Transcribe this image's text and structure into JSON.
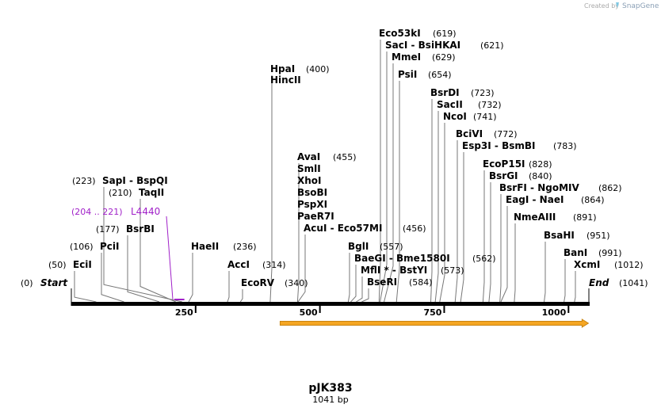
{
  "credit": {
    "prefix": "Created by",
    "brand": "SnapGene"
  },
  "title": "pJK383",
  "subtitle": "1041 bp",
  "colors": {
    "primer": "#a020c8",
    "feature": "#f5a623",
    "line": "#000000"
  },
  "scale": {
    "length": 1041,
    "ticks": [
      250,
      500,
      750,
      1000
    ]
  },
  "ends": {
    "start": {
      "label": "Start",
      "pos": "(0)"
    },
    "end": {
      "label": "End",
      "pos": "(1041)"
    }
  },
  "primer": {
    "label": "L4440",
    "pos": "(204 .. 221)"
  },
  "feature": {
    "start": 420,
    "end": 1040,
    "name": "orf-arrow"
  },
  "sites": [
    {
      "name": "EciI",
      "pos": "(50)",
      "at": 50
    },
    {
      "name": "PciI",
      "pos": "(106)",
      "at": 106
    },
    {
      "name": "BsrBI",
      "pos": "(177)",
      "at": 177
    },
    {
      "name": "TaqII",
      "pos": "(210)",
      "at": 210
    },
    {
      "name": "SapI  -  BspQI",
      "pos": "(223)",
      "at": 223
    },
    {
      "name": "HaeII",
      "pos": "(236)",
      "at": 236
    },
    {
      "name": "AccI",
      "pos": "(314)",
      "at": 314
    },
    {
      "name": "EcoRV",
      "pos": "(340)",
      "at": 340
    },
    {
      "name": "HpaI",
      "pos": "(400)",
      "at": 400
    },
    {
      "name": "HincII",
      "pos": "",
      "at": 400
    },
    {
      "name": "AvaI",
      "pos": "(455)",
      "at": 455
    },
    {
      "name": "SmlI",
      "pos": "",
      "at": 455
    },
    {
      "name": "XhoI",
      "pos": "",
      "at": 455
    },
    {
      "name": "BsoBI",
      "pos": "",
      "at": 455
    },
    {
      "name": "PspXI",
      "pos": "",
      "at": 455
    },
    {
      "name": "PaeR7I",
      "pos": "",
      "at": 455
    },
    {
      "name": "AcuI  -  Eco57MI",
      "pos": "(456)",
      "at": 456
    },
    {
      "name": "BglI",
      "pos": "(557)",
      "at": 557
    },
    {
      "name": "BaeGI  -  Bme1580I",
      "pos": "(562)",
      "at": 562
    },
    {
      "name": "MflI *  -  BstYI",
      "pos": "(573)",
      "at": 573
    },
    {
      "name": "BseRI",
      "pos": "(584)",
      "at": 584
    },
    {
      "name": "Eco53kI",
      "pos": "(619)",
      "at": 619
    },
    {
      "name": "SacI  -  BsiHKAI",
      "pos": "(621)",
      "at": 621
    },
    {
      "name": "MmeI",
      "pos": "(629)",
      "at": 629
    },
    {
      "name": "PsiI",
      "pos": "(654)",
      "at": 654
    },
    {
      "name": "BsrDI",
      "pos": "(723)",
      "at": 723
    },
    {
      "name": "SacII",
      "pos": "(732)",
      "at": 732
    },
    {
      "name": "NcoI",
      "pos": "(741)",
      "at": 741
    },
    {
      "name": "BciVI",
      "pos": "(772)",
      "at": 772
    },
    {
      "name": "Esp3I  -  BsmBI",
      "pos": "(783)",
      "at": 783
    },
    {
      "name": "EcoP15I",
      "pos": "(828)",
      "at": 828
    },
    {
      "name": "BsrGI",
      "pos": "(840)",
      "at": 840
    },
    {
      "name": "BsrFI  -  NgoMIV",
      "pos": "(862)",
      "at": 862
    },
    {
      "name": "EagI  -  NaeI",
      "pos": "(864)",
      "at": 864
    },
    {
      "name": "NmeAIII",
      "pos": "(891)",
      "at": 891
    },
    {
      "name": "BsaHI",
      "pos": "(951)",
      "at": 951
    },
    {
      "name": "BanI",
      "pos": "(991)",
      "at": 991
    },
    {
      "name": "XcmI",
      "pos": "(1012)",
      "at": 1012
    }
  ]
}
